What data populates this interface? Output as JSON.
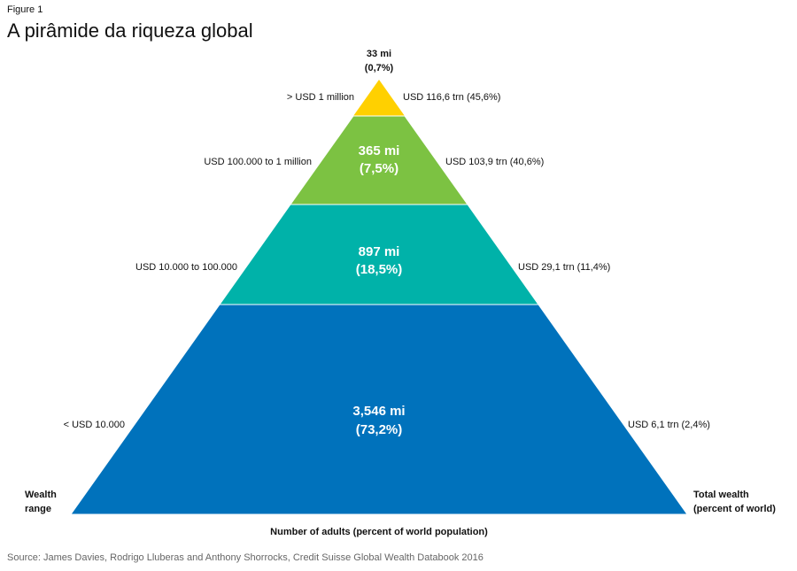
{
  "figure_label": "Figure 1",
  "title": "A pirâmide da riqueza global",
  "levels": [
    {
      "adults": "33 mi",
      "share": "(0,7%)",
      "range": "> USD 1 million",
      "wealth": "USD 116,6 trn (45,6%)"
    },
    {
      "adults": "365 mi",
      "share": "(7,5%)",
      "range": "USD 100.000 to 1 million",
      "wealth": "USD 103,9 trn (40,6%)"
    },
    {
      "adults": "897 mi",
      "share": "(18,5%)",
      "range": "USD 10.000 to 100.000",
      "wealth": "USD 29,1 trn (11,4%)"
    },
    {
      "adults": "3,546 mi",
      "share": "(73,2%)",
      "range": "< USD 10.000",
      "wealth": "USD 6,1 trn (2,4%)"
    }
  ],
  "axis_labels": {
    "left": [
      "Wealth",
      "range"
    ],
    "right": [
      "Total wealth",
      "(percent of world)"
    ],
    "bottom": "Number of adults (percent of world population)"
  },
  "source": "Source: James Davies, Rodrigo Lluberas and Anthony Shorrocks, Credit Suisse Global Wealth Databook 2016"
}
